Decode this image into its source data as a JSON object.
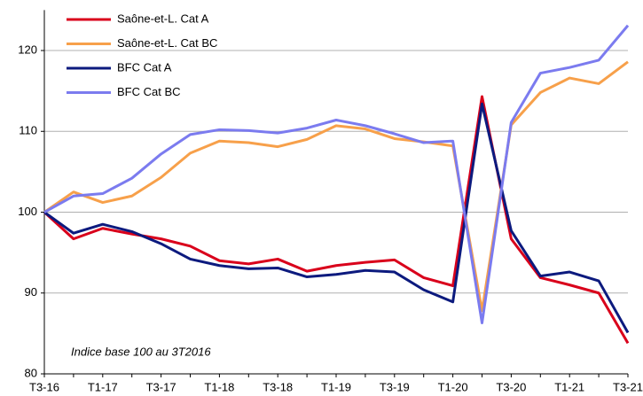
{
  "chart_data": {
    "type": "line",
    "categories": [
      "T3-16",
      null,
      "T1-17",
      null,
      "T3-17",
      null,
      "T1-18",
      null,
      "T3-18",
      null,
      "T1-19",
      null,
      "T3-19",
      null,
      "T1-20",
      null,
      "T3-20",
      null,
      "T1-21",
      null,
      "T3-21"
    ],
    "series": [
      {
        "name": "Saône-et-L.  Cat A",
        "color": "#d9001b",
        "values": [
          100,
          96.7,
          98.0,
          97.3,
          96.7,
          95.8,
          94.0,
          93.6,
          94.2,
          92.7,
          93.4,
          93.8,
          94.1,
          91.9,
          90.9,
          114.3,
          96.7,
          91.9,
          91.0,
          90.0,
          83.8
        ]
      },
      {
        "name": "Saône-et-L.  Cat BC",
        "color": "#f7a04a",
        "values": [
          100,
          102.5,
          101.2,
          102.0,
          104.3,
          107.3,
          108.8,
          108.6,
          108.1,
          109.0,
          110.7,
          110.3,
          109.1,
          108.7,
          108.2,
          87.8,
          110.8,
          114.8,
          116.6,
          115.9,
          118.6
        ]
      },
      {
        "name": "BFC Cat A",
        "color": "#0c1a7e",
        "values": [
          100,
          97.4,
          98.5,
          97.6,
          96.1,
          94.2,
          93.4,
          93.0,
          93.1,
          92.0,
          92.3,
          92.8,
          92.6,
          90.4,
          88.9,
          113.4,
          97.7,
          92.1,
          92.6,
          91.5,
          85.1
        ]
      },
      {
        "name": "BFC Cat BC",
        "color": "#7b7bef",
        "values": [
          100,
          102.0,
          102.3,
          104.2,
          107.2,
          109.6,
          110.2,
          110.1,
          109.8,
          110.4,
          111.4,
          110.7,
          109.7,
          108.6,
          108.8,
          86.3,
          111.1,
          117.2,
          117.9,
          118.8,
          123.1
        ]
      }
    ],
    "ylim": [
      80,
      125
    ],
    "yticks": [
      80,
      90,
      100,
      110,
      120
    ],
    "grid": true,
    "annotation": "Indice base 100 au 3T2016",
    "legend": "top-left"
  }
}
